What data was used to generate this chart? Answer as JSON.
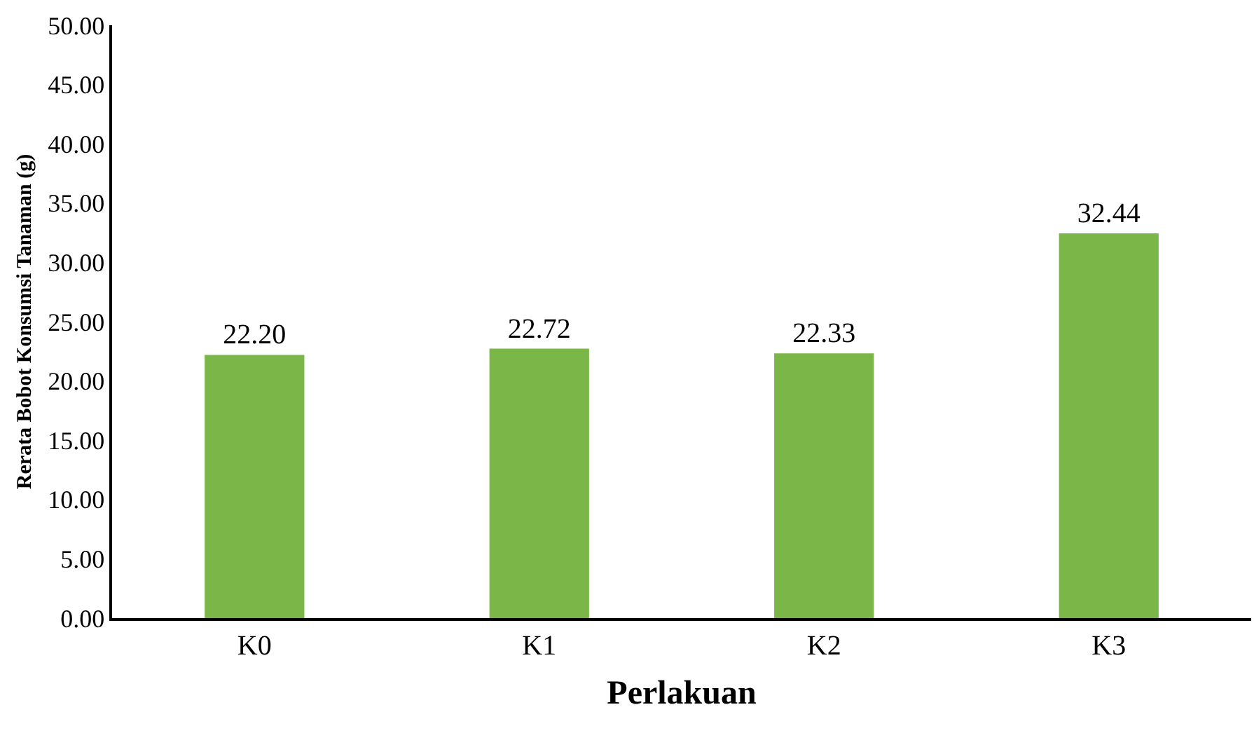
{
  "chart_data": {
    "type": "bar",
    "xlabel": "Perlakuan",
    "ylabel": "Rerata Bobot Konsumsi Tanaman (g)",
    "categories": [
      "K0",
      "K1",
      "K2",
      "K3"
    ],
    "values": [
      22.2,
      22.72,
      22.33,
      32.44
    ],
    "value_labels": [
      "22.20",
      "22.72",
      "22.33",
      "32.44"
    ],
    "color": "#7ab648",
    "ylim": [
      0,
      50
    ],
    "yticks": [
      {
        "value": 0,
        "label": "0.00"
      },
      {
        "value": 5,
        "label": "5.00"
      },
      {
        "value": 10,
        "label": "10.00"
      },
      {
        "value": 15,
        "label": "15.00"
      },
      {
        "value": 20,
        "label": "20.00"
      },
      {
        "value": 25,
        "label": "25.00"
      },
      {
        "value": 30,
        "label": "30.00"
      },
      {
        "value": 35,
        "label": "35.00"
      },
      {
        "value": 40,
        "label": "40.00"
      },
      {
        "value": 45,
        "label": "45.00"
      },
      {
        "value": 50,
        "label": "50.00"
      }
    ],
    "grid": false,
    "legend": false
  }
}
